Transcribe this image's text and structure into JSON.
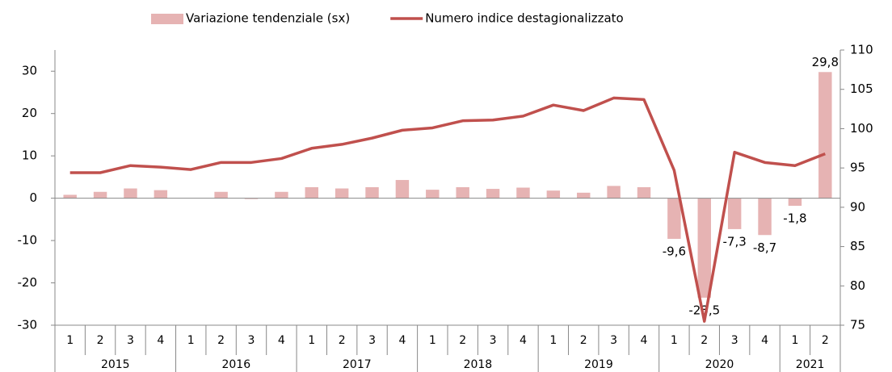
{
  "chart_data": {
    "type": "bar_line",
    "categories": [
      "1",
      "2",
      "3",
      "4",
      "1",
      "2",
      "3",
      "4",
      "1",
      "2",
      "3",
      "4",
      "1",
      "2",
      "3",
      "4",
      "1",
      "2",
      "3",
      "4",
      "1",
      "2",
      "3",
      "4",
      "1",
      "2"
    ],
    "x_groups": [
      "2015",
      "2016",
      "2017",
      "2018",
      "2019",
      "2020",
      "2021"
    ],
    "series": [
      {
        "name": "Variazione tendenziale (sx)",
        "type": "bar",
        "color": "#e6b3b3",
        "values": [
          0.8,
          1.5,
          2.3,
          1.9,
          0,
          1.5,
          -0.2,
          1.5,
          2.6,
          2.3,
          2.6,
          4.3,
          2.0,
          2.6,
          2.2,
          2.5,
          1.8,
          1.3,
          2.9,
          2.6,
          -9.6,
          -23.5,
          -7.3,
          -8.7,
          -1.8,
          29.8
        ],
        "value_labels": [
          null,
          null,
          null,
          null,
          null,
          null,
          null,
          null,
          null,
          null,
          null,
          null,
          null,
          null,
          null,
          null,
          null,
          null,
          null,
          null,
          "-9,6",
          "-23,5",
          "-7,3",
          "-8,7",
          "-1,8",
          "29,8"
        ]
      },
      {
        "name": "Numero indice destagionalizzato",
        "type": "line",
        "axis": "y2",
        "color": "#c0504d",
        "values": [
          94.4,
          94.4,
          95.3,
          95.1,
          94.8,
          95.7,
          95.7,
          96.2,
          97.5,
          98.0,
          98.8,
          99.8,
          100.1,
          101.0,
          101.1,
          101.6,
          103.0,
          102.3,
          103.9,
          103.7,
          94.7,
          75.5,
          97.0,
          95.7,
          95.3,
          96.8
        ]
      }
    ],
    "ylim": [
      -30,
      35
    ],
    "yticks": [
      -30,
      -20,
      -10,
      0,
      10,
      20,
      30
    ],
    "y2lim": [
      75,
      110
    ],
    "y2ticks": [
      75,
      80,
      85,
      90,
      95,
      100,
      105,
      110
    ],
    "legend": "top"
  }
}
